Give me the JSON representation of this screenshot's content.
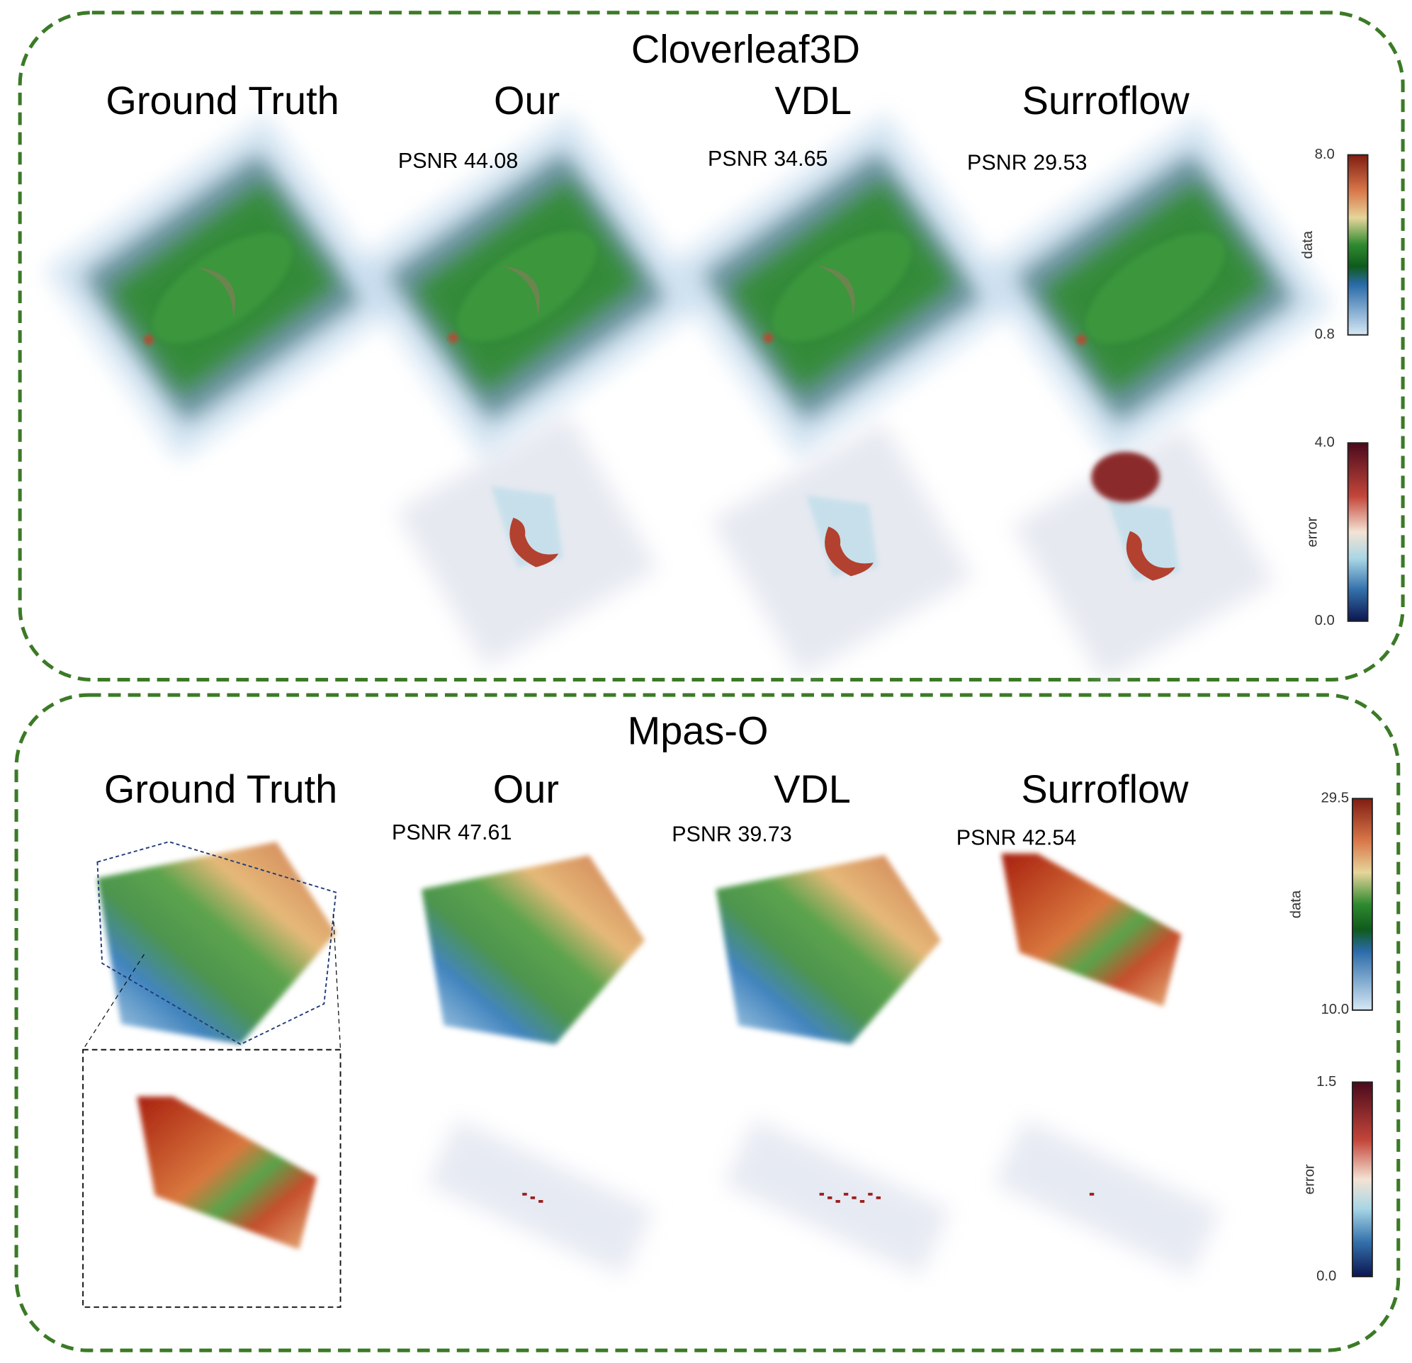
{
  "panels": [
    {
      "title": "Cloverleaf3D",
      "columns": [
        "Ground Truth",
        "Our",
        "VDL",
        "Surroflow"
      ],
      "psnr": [
        "PSNR 44.08",
        "PSNR 34.65",
        "PSNR 29.53"
      ],
      "colorbars": [
        {
          "max": "8.0",
          "min": "0.8",
          "label": "data"
        },
        {
          "max": "4.0",
          "min": "0.0",
          "label": "error"
        }
      ]
    },
    {
      "title": "Mpas-O",
      "columns": [
        "Ground Truth",
        "Our",
        "VDL",
        "Surroflow"
      ],
      "psnr": [
        "PSNR 47.61",
        "PSNR 39.73",
        "PSNR 42.54"
      ],
      "colorbars": [
        {
          "max": "29.5",
          "min": "10.0",
          "label": "data"
        },
        {
          "max": "1.5",
          "min": "0.0",
          "label": "error"
        }
      ]
    }
  ]
}
